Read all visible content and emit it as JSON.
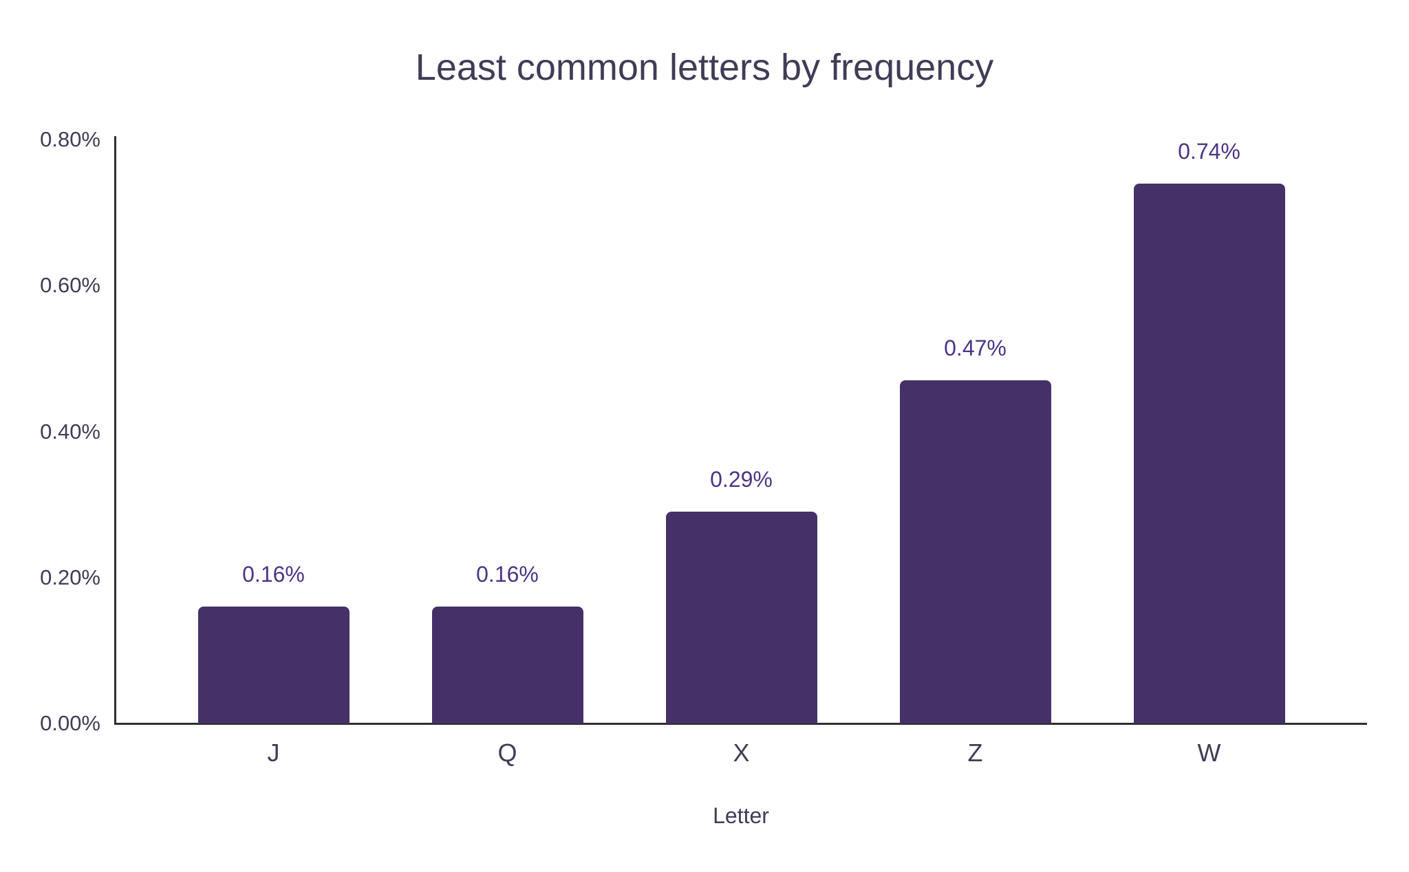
{
  "chart_data": {
    "type": "bar",
    "title": "Least common letters by frequency",
    "xlabel": "Letter",
    "ylabel": "",
    "categories": [
      "J",
      "Q",
      "X",
      "Z",
      "W"
    ],
    "values": [
      0.16,
      0.16,
      0.29,
      0.47,
      0.74
    ],
    "value_labels": [
      "0.16%",
      "0.16%",
      "0.29%",
      "0.47%",
      "0.74%"
    ],
    "yticks": [
      "0.00%",
      "0.20%",
      "0.40%",
      "0.60%",
      "0.80%"
    ],
    "ylim": [
      0,
      0.8
    ],
    "grid": false,
    "legend_position": "none",
    "colors": {
      "bar": "#453168",
      "value_label": "#4d3485",
      "axis_text": "#3f3d56",
      "axis_line": "#2f2f2f",
      "background": "#ffffff"
    }
  }
}
